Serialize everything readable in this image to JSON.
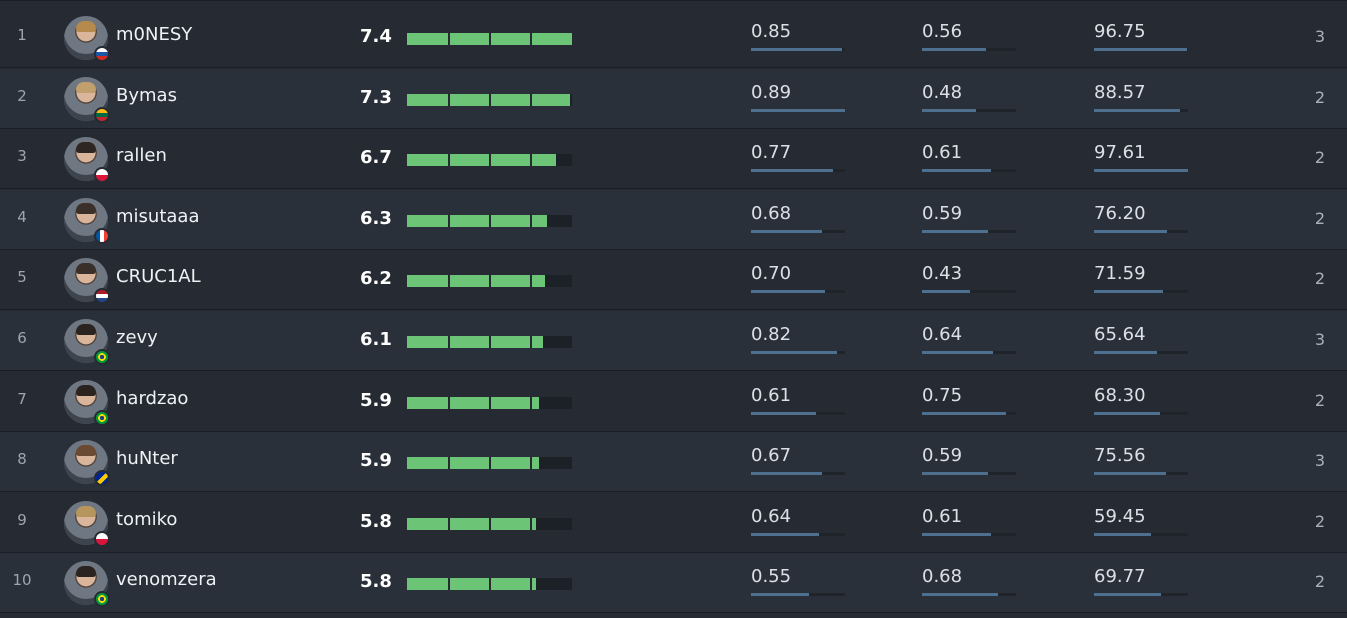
{
  "players": [
    {
      "rank": "1",
      "name": "m0NESY",
      "rating": "7.4",
      "rating_value": 7.4,
      "stat1": "0.85",
      "stat2": "0.56",
      "stat3": "96.75",
      "maps": "3",
      "stat1_fill": 0.97,
      "stat2_fill": 0.68,
      "stat3_fill": 0.99,
      "flag": "russia",
      "hair": "#b68a4c"
    },
    {
      "rank": "2",
      "name": "Bymas",
      "rating": "7.3",
      "rating_value": 7.3,
      "stat1": "0.89",
      "stat2": "0.48",
      "stat3": "88.57",
      "maps": "2",
      "stat1_fill": 1.0,
      "stat2_fill": 0.57,
      "stat3_fill": 0.91,
      "flag": "lithuania",
      "hair": "#c2a06d"
    },
    {
      "rank": "3",
      "name": "rallen",
      "rating": "6.7",
      "rating_value": 6.7,
      "stat1": "0.77",
      "stat2": "0.61",
      "stat3": "97.61",
      "maps": "2",
      "stat1_fill": 0.87,
      "stat2_fill": 0.73,
      "stat3_fill": 1.0,
      "flag": "poland",
      "hair": "#2d2621"
    },
    {
      "rank": "4",
      "name": "misutaaa",
      "rating": "6.3",
      "rating_value": 6.3,
      "stat1": "0.68",
      "stat2": "0.59",
      "stat3": "76.20",
      "maps": "2",
      "stat1_fill": 0.76,
      "stat2_fill": 0.7,
      "stat3_fill": 0.78,
      "flag": "france",
      "hair": "#3a2f29"
    },
    {
      "rank": "5",
      "name": "CRUC1AL",
      "rating": "6.2",
      "rating_value": 6.2,
      "stat1": "0.70",
      "stat2": "0.43",
      "stat3": "71.59",
      "maps": "2",
      "stat1_fill": 0.79,
      "stat2_fill": 0.51,
      "stat3_fill": 0.73,
      "flag": "netherlands",
      "hair": "#3a2f29"
    },
    {
      "rank": "6",
      "name": "zevy",
      "rating": "6.1",
      "rating_value": 6.1,
      "stat1": "0.82",
      "stat2": "0.64",
      "stat3": "65.64",
      "maps": "3",
      "stat1_fill": 0.92,
      "stat2_fill": 0.76,
      "stat3_fill": 0.67,
      "flag": "brazil",
      "hair": "#2a231f"
    },
    {
      "rank": "7",
      "name": "hardzao",
      "rating": "5.9",
      "rating_value": 5.9,
      "stat1": "0.61",
      "stat2": "0.75",
      "stat3": "68.30",
      "maps": "2",
      "stat1_fill": 0.69,
      "stat2_fill": 0.89,
      "stat3_fill": 0.7,
      "flag": "brazil",
      "hair": "#2a231f"
    },
    {
      "rank": "8",
      "name": "huNter",
      "rating": "5.9",
      "rating_value": 5.9,
      "stat1": "0.67",
      "stat2": "0.59",
      "stat3": "75.56",
      "maps": "3",
      "stat1_fill": 0.75,
      "stat2_fill": 0.7,
      "stat3_fill": 0.77,
      "flag": "bosnia",
      "hair": "#6b4a32"
    },
    {
      "rank": "9",
      "name": "tomiko",
      "rating": "5.8",
      "rating_value": 5.8,
      "stat1": "0.64",
      "stat2": "0.61",
      "stat3": "59.45",
      "maps": "2",
      "stat1_fill": 0.72,
      "stat2_fill": 0.73,
      "stat3_fill": 0.61,
      "flag": "poland",
      "hair": "#b6965d"
    },
    {
      "rank": "10",
      "name": "venomzera",
      "rating": "5.8",
      "rating_value": 5.8,
      "stat1": "0.55",
      "stat2": "0.68",
      "stat3": "69.77",
      "maps": "2",
      "stat1_fill": 0.62,
      "stat2_fill": 0.81,
      "stat3_fill": 0.71,
      "flag": "brazil",
      "hair": "#2a231f"
    }
  ],
  "rating_max": 7.4,
  "colors": {
    "rating_bar": "#6cc477",
    "stat_bar": "#4f6f8f",
    "background": "#262b33"
  }
}
